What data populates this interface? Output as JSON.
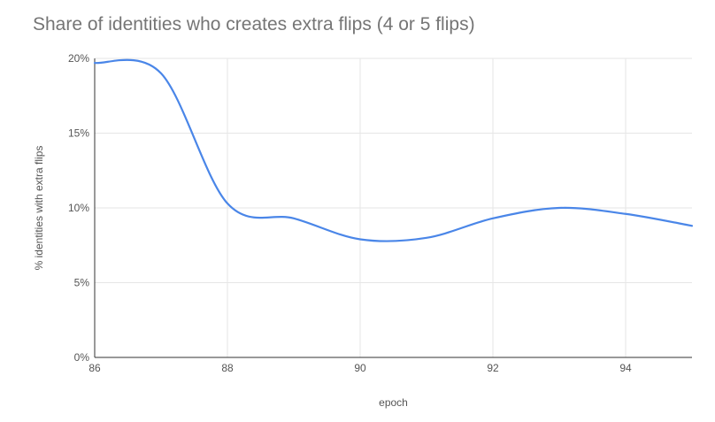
{
  "chart_data": {
    "type": "line",
    "title": "Share of identities who creates extra flips (4 or 5 flips)",
    "xlabel": "epoch",
    "ylabel": "% identities with extra flips",
    "xlim": [
      86,
      95
    ],
    "ylim": [
      0,
      20
    ],
    "x_ticks": [
      "86",
      "88",
      "90",
      "92",
      "94"
    ],
    "y_ticks": [
      "0%",
      "5%",
      "10%",
      "15%",
      "20%"
    ],
    "grid": true,
    "legend": "none",
    "line_color": "#4a86e8",
    "series": [
      {
        "x": [
          86,
          87,
          88,
          89,
          90,
          91,
          92,
          93,
          94,
          95
        ],
        "values": [
          19.7,
          19.0,
          10.3,
          9.3,
          7.9,
          8.0,
          9.3,
          10.0,
          9.6,
          8.8
        ]
      }
    ]
  }
}
